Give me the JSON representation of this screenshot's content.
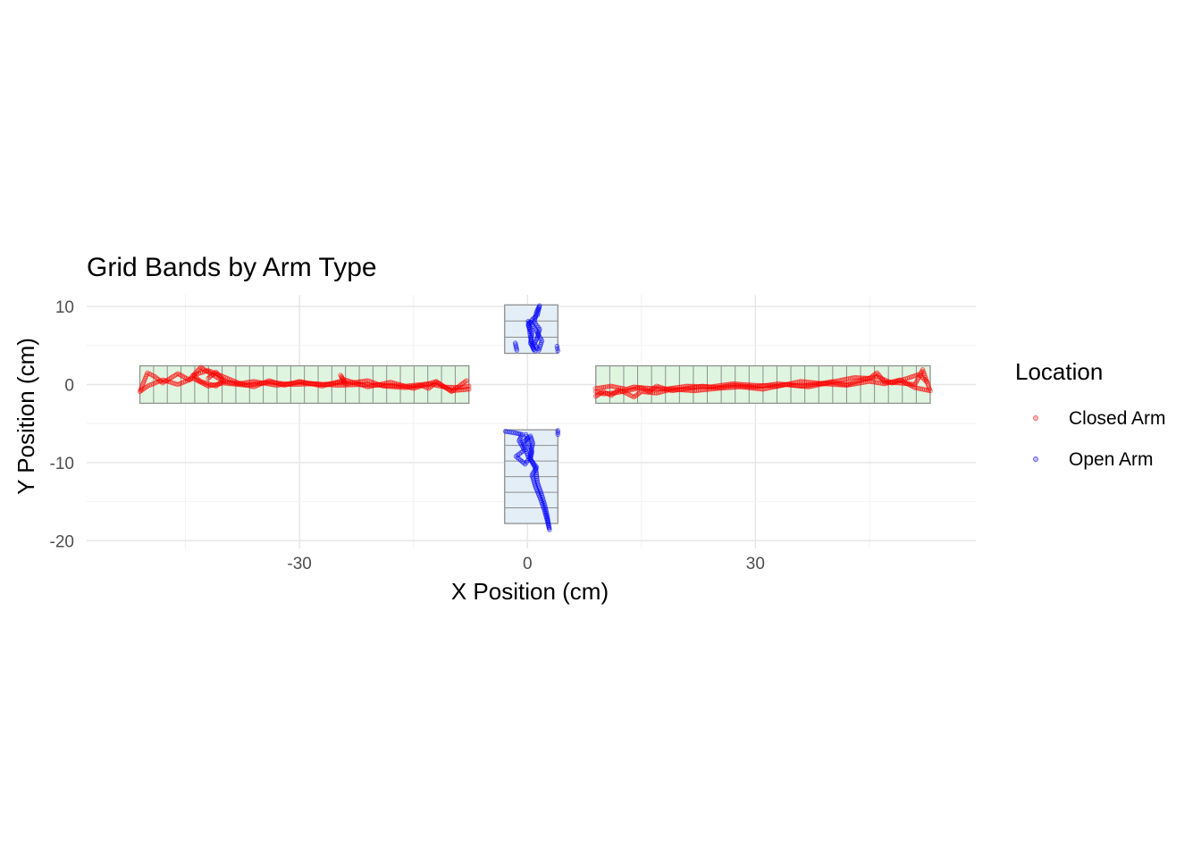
{
  "chart_data": {
    "type": "scatter",
    "title": "Grid Bands by Arm Type",
    "xlabel": "X Position (cm)",
    "ylabel": "Y Position (cm)",
    "xlim": [
      -58,
      59
    ],
    "ylim": [
      -21,
      11.5
    ],
    "x_ticks": [
      -30,
      0,
      30
    ],
    "x_tick_labels": [
      "-30",
      "0",
      "30"
    ],
    "y_ticks": [
      -20,
      -10,
      0,
      10
    ],
    "y_tick_labels": [
      "-20",
      "-10",
      "0",
      "10"
    ],
    "grid": true,
    "legend": {
      "title": "Location",
      "position": "right",
      "entries": [
        {
          "label": "Closed Arm",
          "color": "#ff0000"
        },
        {
          "label": "Open Arm",
          "color": "#0000ff"
        }
      ]
    },
    "bands": [
      {
        "arm": "Closed Arm",
        "x": [
          -51,
          -7.7
        ],
        "y": [
          -2.4,
          2.4
        ],
        "fill": "#dff5df",
        "columns": 24
      },
      {
        "arm": "Closed Arm",
        "x": [
          9,
          53
        ],
        "y": [
          -2.4,
          2.4
        ],
        "fill": "#dff5df",
        "columns": 24
      },
      {
        "arm": "Open Arm",
        "x": [
          -3,
          4
        ],
        "y": [
          4,
          10.2
        ],
        "fill": "#e3eef6",
        "rows": 3
      },
      {
        "arm": "Open Arm",
        "x": [
          -3,
          4
        ],
        "y": [
          -17.8,
          -5.8
        ],
        "fill": "#e3eef6",
        "rows": 6
      }
    ],
    "series": [
      {
        "name": "Closed Arm",
        "color": "#ff0000",
        "paths": [
          [
            [
              -7.7,
              -0.6
            ],
            [
              -10,
              -0.8
            ],
            [
              -12,
              0.3
            ],
            [
              -13,
              -0.5
            ],
            [
              -14,
              -0.1
            ],
            [
              -16,
              -0.4
            ],
            [
              -19,
              -0.2
            ],
            [
              -21,
              0.5
            ],
            [
              -24,
              0.1
            ],
            [
              -24.6,
              1.2
            ],
            [
              -24,
              0.3
            ],
            [
              -27,
              0.0
            ],
            [
              -30,
              0.3
            ],
            [
              -33,
              -0.1
            ],
            [
              -36,
              0.4
            ],
            [
              -38,
              0.1
            ],
            [
              -40,
              0.4
            ],
            [
              -42,
              1.6
            ],
            [
              -43,
              2.2
            ],
            [
              -44.5,
              0.6
            ],
            [
              -46,
              1.4
            ],
            [
              -48,
              0.2
            ],
            [
              -49,
              1.0
            ],
            [
              -50,
              1.5
            ],
            [
              -51,
              -0.9
            ],
            [
              -50,
              -0.2
            ],
            [
              -48,
              0.6
            ],
            [
              -46,
              0.0
            ],
            [
              -44,
              0.8
            ],
            [
              -42,
              -0.2
            ],
            [
              -40,
              0.2
            ],
            [
              -37,
              -0.1
            ],
            [
              -34,
              0.3
            ],
            [
              -31,
              0.0
            ],
            [
              -28,
              0.1
            ],
            [
              -25,
              -0.1
            ],
            [
              -22,
              0.0
            ],
            [
              -19,
              -0.1
            ],
            [
              -16,
              -0.2
            ],
            [
              -13,
              0.1
            ],
            [
              -11,
              -0.3
            ],
            [
              -9,
              -0.4
            ],
            [
              -7.7,
              -0.2
            ]
          ],
          [
            [
              -42,
              0.8
            ],
            [
              -41,
              1.6
            ],
            [
              -40,
              0.5
            ],
            [
              -41,
              -0.2
            ],
            [
              -43,
              0.4
            ],
            [
              -44,
              1.2
            ],
            [
              -42,
              1.8
            ],
            [
              -40,
              1.0
            ],
            [
              -38,
              0.2
            ],
            [
              -36,
              -0.3
            ],
            [
              -34,
              0.5
            ],
            [
              -32,
              -0.1
            ],
            [
              -30,
              0.4
            ],
            [
              -27,
              -0.2
            ],
            [
              -24,
              0.6
            ],
            [
              -21,
              -0.3
            ],
            [
              -18,
              0.3
            ],
            [
              -15,
              -0.5
            ],
            [
              -12,
              0.4
            ],
            [
              -10,
              -0.9
            ],
            [
              -8,
              0.5
            ]
          ],
          [
            [
              9,
              -0.5
            ],
            [
              11,
              -0.2
            ],
            [
              13,
              -0.6
            ],
            [
              14,
              -0.3
            ],
            [
              15,
              -0.4
            ],
            [
              16,
              -0.9
            ],
            [
              17,
              -0.2
            ],
            [
              19,
              -0.8
            ],
            [
              21,
              -0.5
            ],
            [
              23,
              -0.2
            ],
            [
              25,
              -0.4
            ],
            [
              27,
              -0.1
            ],
            [
              30,
              -0.3
            ],
            [
              33,
              0.1
            ],
            [
              36,
              -0.2
            ],
            [
              39,
              0.2
            ],
            [
              41,
              0.5
            ],
            [
              43,
              0.9
            ],
            [
              45,
              0.8
            ],
            [
              46,
              1.5
            ],
            [
              47,
              0.3
            ],
            [
              49,
              0.2
            ],
            [
              51,
              0.0
            ],
            [
              52,
              1.9
            ],
            [
              53,
              -0.8
            ],
            [
              51,
              -0.4
            ],
            [
              49,
              0.6
            ],
            [
              47,
              0.1
            ],
            [
              45,
              0.4
            ],
            [
              42,
              -0.1
            ],
            [
              39,
              0.1
            ],
            [
              36,
              0.4
            ],
            [
              33,
              -0.2
            ],
            [
              30,
              -0.1
            ],
            [
              27,
              0.1
            ],
            [
              24,
              -0.3
            ],
            [
              21,
              -0.2
            ],
            [
              18,
              -0.6
            ],
            [
              15,
              -0.4
            ],
            [
              12,
              -1.0
            ],
            [
              10,
              -1.2
            ],
            [
              9,
              -0.9
            ]
          ],
          [
            [
              9,
              -1.5
            ],
            [
              10,
              -0.9
            ],
            [
              11,
              -1.4
            ],
            [
              12,
              -0.7
            ],
            [
              13,
              -1.1
            ],
            [
              14,
              -1.6
            ],
            [
              15,
              -0.9
            ],
            [
              17,
              -1.1
            ],
            [
              19,
              -0.6
            ],
            [
              22,
              -0.8
            ],
            [
              25,
              -0.5
            ],
            [
              28,
              -0.3
            ],
            [
              31,
              -0.6
            ],
            [
              34,
              0.0
            ],
            [
              37,
              -0.3
            ],
            [
              40,
              0.3
            ],
            [
              42,
              0.0
            ],
            [
              44,
              0.6
            ],
            [
              46,
              1.0
            ],
            [
              48,
              0.2
            ],
            [
              50,
              0.8
            ],
            [
              51.5,
              1.3
            ],
            [
              52.5,
              0.4
            ]
          ]
        ]
      },
      {
        "name": "Open Arm",
        "color": "#0000ff",
        "paths": [
          [
            [
              1,
              4.3
            ],
            [
              0.4,
              5.3
            ],
            [
              0.6,
              6.5
            ],
            [
              0.1,
              7.6
            ],
            [
              0.7,
              8.4
            ],
            [
              1.3,
              8.9
            ],
            [
              1.6,
              10.1
            ],
            [
              1.2,
              9.3
            ],
            [
              0.9,
              8.0
            ],
            [
              1.6,
              7.1
            ],
            [
              1.3,
              6.0
            ],
            [
              0.9,
              5.2
            ],
            [
              1.5,
              4.4
            ],
            [
              1.9,
              5.6
            ],
            [
              1.2,
              6.8
            ],
            [
              0.5,
              7.9
            ],
            [
              0.1,
              8.1
            ],
            [
              0.4,
              6.0
            ],
            [
              0.8,
              4.5
            ]
          ],
          [
            [
              -1.6,
              5.3
            ],
            [
              -1.4,
              4.4
            ]
          ],
          [
            [
              3.9,
              4.9
            ],
            [
              4,
              4.3
            ]
          ],
          [
            [
              -2.9,
              -6
            ],
            [
              -1.6,
              -6.2
            ],
            [
              -0.7,
              -6.4
            ],
            [
              -1.1,
              -7.2
            ],
            [
              -0.4,
              -8.4
            ],
            [
              -1.5,
              -9.2
            ],
            [
              -0.3,
              -10.2
            ],
            [
              0.2,
              -9.5
            ],
            [
              -0.6,
              -7.4
            ],
            [
              0.4,
              -6.6
            ],
            [
              0.7,
              -7.5
            ],
            [
              0.3,
              -9.4
            ],
            [
              1.1,
              -10.8
            ],
            [
              1.3,
              -12.5
            ],
            [
              1.9,
              -14.2
            ],
            [
              2.3,
              -15.5
            ],
            [
              2.6,
              -16.8
            ],
            [
              2.9,
              -18.6
            ],
            [
              2.6,
              -17.4
            ],
            [
              2.2,
              -16.0
            ],
            [
              1.7,
              -14.6
            ],
            [
              1.1,
              -13.2
            ],
            [
              0.6,
              -11.6
            ],
            [
              1.2,
              -10.6
            ],
            [
              0.4,
              -9.6
            ],
            [
              0.6,
              -8.6
            ],
            [
              0.1,
              -7.6
            ],
            [
              -0.2,
              -6.4
            ]
          ],
          [
            [
              4,
              -6.4
            ],
            [
              4,
              -5.9
            ]
          ]
        ]
      }
    ]
  }
}
